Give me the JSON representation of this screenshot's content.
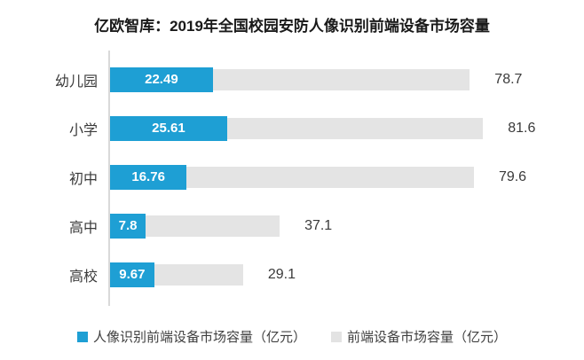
{
  "title": "亿欧智库：2019年全国校园安防人像识别前端设备市场容量",
  "colors": {
    "series_blue": "#1E9FD4",
    "series_gray": "#E4E4E4",
    "axis_line": "#D9D9D9",
    "title_text": "#1A1A1A",
    "label_text": "#3A3A3A",
    "blue_value_text": "#FFFFFF"
  },
  "legend": [
    {
      "label": "人像识别前端设备市场容量（亿元）",
      "color": "#1E9FD4"
    },
    {
      "label": "前端设备市场容量（亿元）",
      "color": "#E3E3E3"
    }
  ],
  "chart_data": {
    "type": "bar",
    "orientation": "horizontal",
    "title": "亿欧智库：2019年全国校园安防人像识别前端设备市场容量",
    "categories": [
      "幼儿园",
      "小学",
      "初中",
      "高中",
      "高校"
    ],
    "series": [
      {
        "name": "人像识别前端设备市场容量（亿元）",
        "color": "#1E9FD4",
        "values": [
          22.49,
          25.61,
          16.76,
          7.8,
          9.67
        ],
        "value_label_position": "inside-center"
      },
      {
        "name": "前端设备市场容量（亿元）",
        "color": "#E4E4E4",
        "values": [
          78.7,
          81.6,
          79.6,
          37.1,
          29.1
        ],
        "value_label_position": "outside-right"
      }
    ],
    "unit": "亿元",
    "xlabel": "",
    "ylabel": "",
    "xlim": [
      0,
      85
    ],
    "grid": false,
    "legend_position": "bottom",
    "value_labels": true
  }
}
